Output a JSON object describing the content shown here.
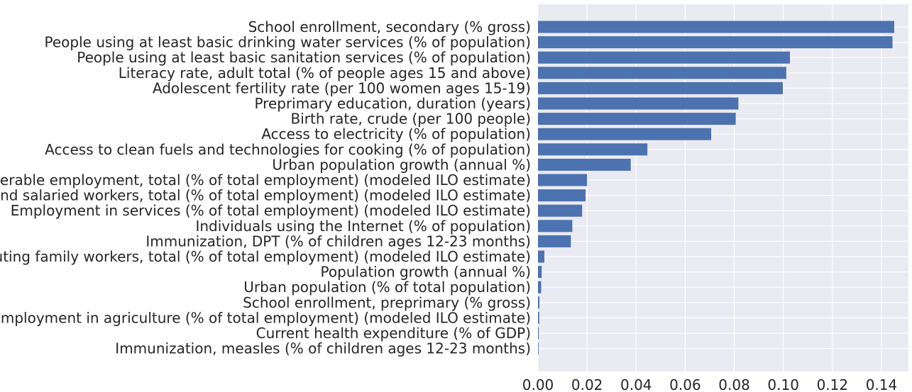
{
  "chart_data": {
    "type": "bar",
    "orientation": "horizontal",
    "title": "",
    "xlabel": "",
    "ylabel": "",
    "xlim": [
      0,
      0.151
    ],
    "grid": true,
    "bar_color": "#4c72b0",
    "background_color": "#eaeaf2",
    "grid_color": "#ffffff",
    "x_ticks": [
      "0.00",
      "0.02",
      "0.04",
      "0.06",
      "0.08",
      "0.10",
      "0.12",
      "0.14"
    ],
    "x_tick_values": [
      0,
      0.02,
      0.04,
      0.06,
      0.08,
      0.1,
      0.12,
      0.14
    ],
    "categories": [
      "School enrollment, secondary (% gross)",
      "People using at least basic drinking water services (% of population)",
      "People using at least basic sanitation services (% of population)",
      "Literacy rate, adult total (% of people ages 15 and above)",
      "Adolescent fertility rate (per 100 women ages 15-19)",
      "Preprimary education, duration (years)",
      "Birth rate, crude (per 100 people)",
      "Access to electricity (% of population)",
      "Access to clean fuels and technologies for cooking (% of population)",
      "Urban population growth (annual %)",
      "Vulnerable employment, total (% of total employment) (modeled ILO estimate)",
      "Wage and salaried workers, total (% of total employment) (modeled ILO estimate)",
      "Employment in services (% of total employment) (modeled ILO estimate)",
      "Individuals using the Internet (% of population)",
      "Immunization, DPT (% of children ages 12-23 months)",
      "Contributing family workers, total (% of total employment) (modeled ILO estimate)",
      "Population growth (annual %)",
      "Urban population (% of total population)",
      "School enrollment, preprimary (% gross)",
      "Employment in agriculture (% of total employment) (modeled ILO estimate)",
      "Current health expenditure (% of GDP)",
      "Immunization, measles (% of children ages 12-23 months)"
    ],
    "values": [
      0.1452,
      0.1445,
      0.1027,
      0.1012,
      0.0998,
      0.0817,
      0.0806,
      0.0706,
      0.0446,
      0.0378,
      0.02,
      0.0194,
      0.018,
      0.014,
      0.0134,
      0.0026,
      0.0015,
      0.0013,
      0.0006,
      0.0005,
      0.0003,
      0.0002
    ]
  }
}
